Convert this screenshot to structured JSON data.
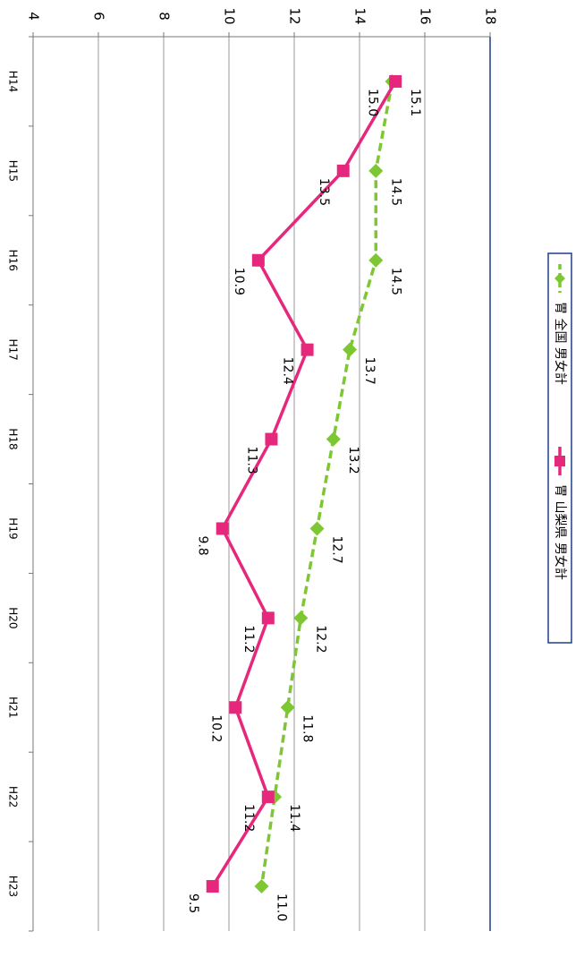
{
  "chart_data": {
    "type": "line",
    "categories": [
      "H14",
      "H15",
      "H16",
      "H17",
      "H18",
      "H19",
      "H20",
      "H21",
      "H22",
      "H23"
    ],
    "series": [
      {
        "name": "胃 全国 男女計",
        "values": [
          15.0,
          14.5,
          14.5,
          13.7,
          13.2,
          12.7,
          12.2,
          11.8,
          11.4,
          11.0
        ],
        "labels": [
          "15.0",
          "14.5",
          "14.5",
          "13.7",
          "13.2",
          "12.7",
          "12.2",
          "11.8",
          "11.4",
          "11.0"
        ],
        "color": "#7dc832",
        "line_style": "dashed",
        "marker": "diamond"
      },
      {
        "name": "胃 山梨県 男女計",
        "values": [
          15.1,
          13.5,
          10.9,
          12.4,
          11.3,
          9.8,
          11.2,
          10.2,
          11.2,
          9.5
        ],
        "labels": [
          "15.1",
          "13.5",
          "10.9",
          "12.4",
          "11.3",
          "9.8",
          "11.2",
          "10.2",
          "11.2",
          "9.5"
        ],
        "color": "#e6287d",
        "line_style": "solid",
        "marker": "square"
      }
    ],
    "yticks": [
      4,
      6,
      8,
      10,
      12,
      14,
      16,
      18
    ],
    "ytick_labels": [
      "4",
      "6",
      "8",
      "10",
      "12",
      "14",
      "16",
      "18"
    ],
    "ylim": [
      4,
      18
    ],
    "grid": true,
    "orientation": "rotated-90-clockwise",
    "legend_position": "right"
  }
}
